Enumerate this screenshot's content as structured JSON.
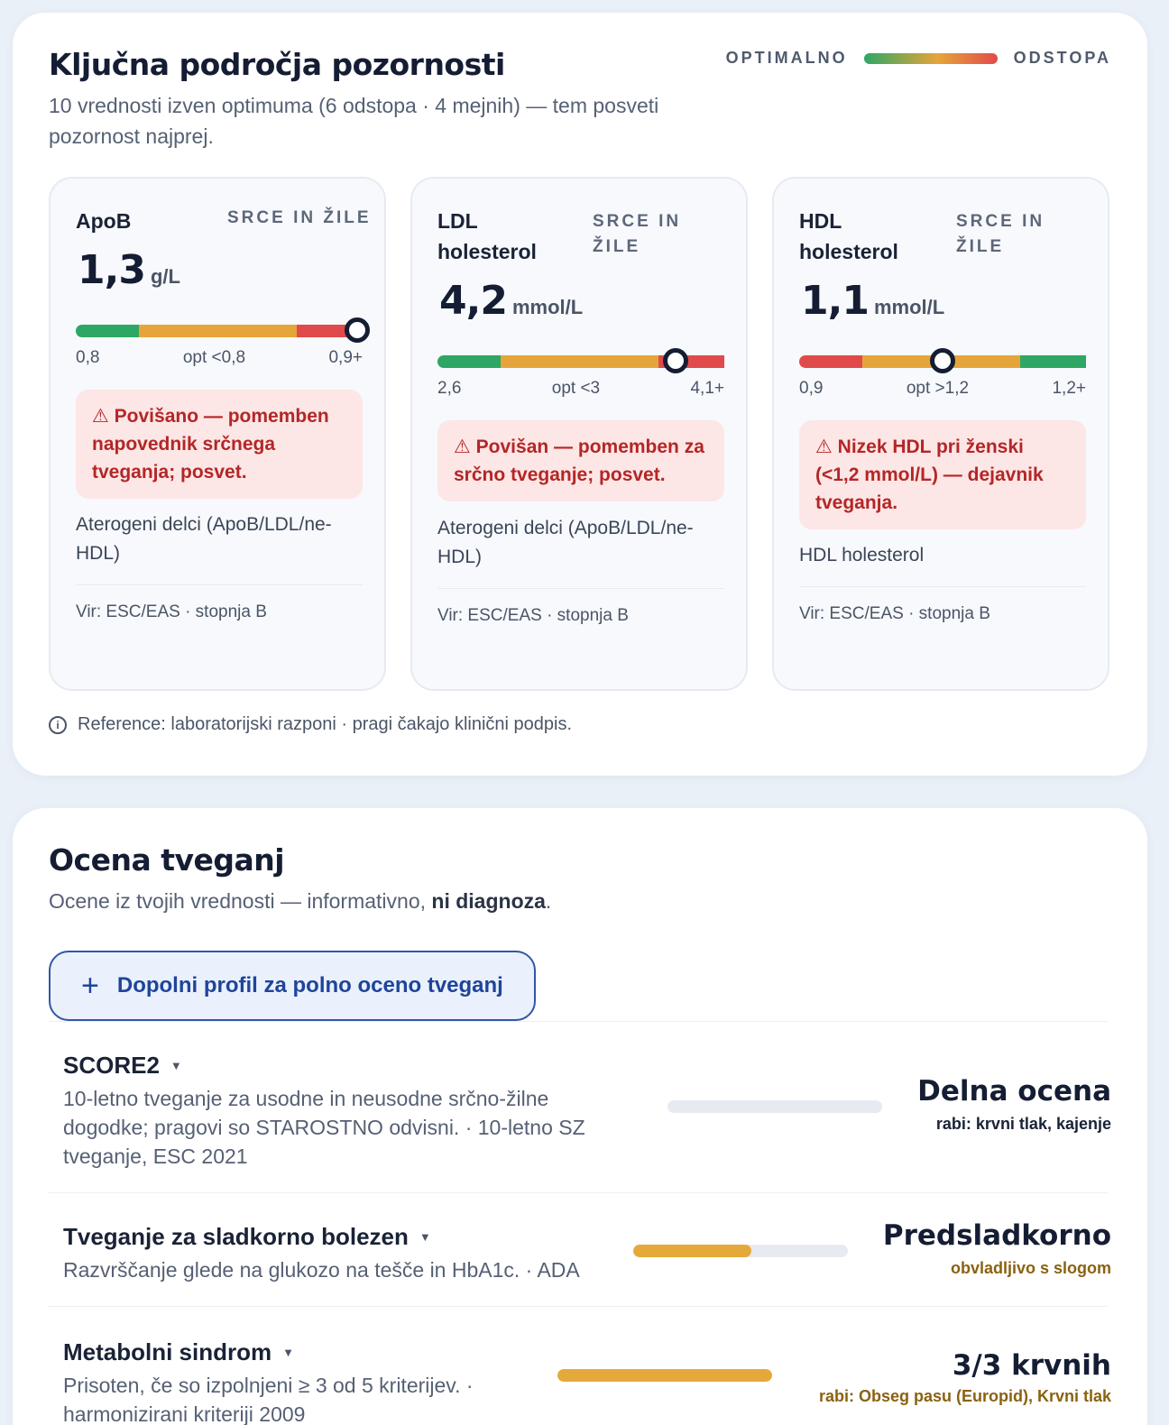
{
  "attention": {
    "title": "Ključna področja pozornosti",
    "subtitle_line1": "10 vrednosti izven optimuma (6 odstopa · 4 mejnih) — tem posveti",
    "subtitle_line2": "pozornost najprej.",
    "legend": {
      "left": "OPTIMALNO",
      "right": "ODSTOPA"
    },
    "cards": [
      {
        "name_line1": "ApoB",
        "name_line2": "",
        "category_line1": "SRCE IN ŽILE",
        "category_line2": "",
        "value": "1,3",
        "unit": "g/L",
        "gauge": {
          "segments": [
            {
              "color": "#2ea664",
              "frac": 0.22
            },
            {
              "color": "#e6a53a",
              "frac": 0.55
            },
            {
              "color": "#e14a4a",
              "frac": 0.23
            }
          ],
          "marker": 0.98
        },
        "ticks": {
          "low": "0,8",
          "opt": "opt <0,8",
          "high": "0,9+"
        },
        "alert": "⚠ Povišano — pomemben napovednik srčnega tveganja; posvet.",
        "description": "Aterogeni delci (ApoB/LDL/ne-HDL)",
        "source": "Vir: ESC/EAS · stopnja B"
      },
      {
        "name_line1": "LDL",
        "name_line2": "holesterol",
        "category_line1": "SRCE IN",
        "category_line2": "ŽILE",
        "value": "4,2",
        "unit": "mmol/L",
        "gauge": {
          "segments": [
            {
              "color": "#2ea664",
              "frac": 0.22
            },
            {
              "color": "#e6a53a",
              "frac": 0.55
            },
            {
              "color": "#e14a4a",
              "frac": 0.23
            }
          ],
          "marker": 0.83
        },
        "ticks": {
          "low": "2,6",
          "opt": "opt <3",
          "high": "4,1+"
        },
        "alert": "⚠ Povišan — pomemben za srčno tveganje; posvet.",
        "description": "Aterogeni delci (ApoB/LDL/ne-HDL)",
        "source": "Vir: ESC/EAS · stopnja B"
      },
      {
        "name_line1": "HDL",
        "name_line2": "holesterol",
        "category_line1": "SRCE IN",
        "category_line2": "ŽILE",
        "value": "1,1",
        "unit": "mmol/L",
        "gauge": {
          "segments": [
            {
              "color": "#e14a4a",
              "frac": 0.22
            },
            {
              "color": "#e6a53a",
              "frac": 0.55
            },
            {
              "color": "#2ea664",
              "frac": 0.23
            }
          ],
          "marker": 0.5
        },
        "ticks": {
          "low": "0,9",
          "opt": "opt >1,2",
          "high": "1,2+"
        },
        "alert": "⚠ Nizek HDL pri ženski (<1,2 mmol/L) — dejavnik tveganja.",
        "description": "HDL holesterol",
        "source": "Vir: ESC/EAS · stopnja B"
      }
    ],
    "reference_note": "Reference: laboratorijski razponi · pragi čakajo klinični podpis."
  },
  "risk": {
    "title": "Ocena tveganj",
    "subtitle_plain": "Ocene iz tvojih vrednosti — informativno, ",
    "subtitle_bold": "ni diagnoza",
    "subtitle_end": ".",
    "complete_button": "Dopolni profil za polno oceno tveganj",
    "rows": [
      {
        "title": "SCORE2",
        "description": "10-letno tveganje za usodne in neusodne srčno-žilne dogodke; pragovi so STAROSTNO odvisni. · 10-letno SZ tveganje, ESC 2021",
        "progress": 0,
        "status": "Delna ocena",
        "status_note": "rabi: krvni tlak, kajenje",
        "note_color": "#1a2236"
      },
      {
        "title": "Tveganje za sladkorno bolezen",
        "description": "Razvrščanje glede na glukozo na tešče in HbA1c. · ADA",
        "progress": 0.55,
        "status": "Predsladkorno",
        "status_note": "obvladljivo s slogom",
        "note_color": "#8a6210"
      },
      {
        "title": "Metabolni sindrom",
        "description": "Prisoten, če so izpolnjeni ≥ 3 od 5 kriterijev. · harmonizirani kriteriji 2009",
        "progress": 1.0,
        "status": "3/3 krvnih",
        "status_note": "rabi: Obseg pasu (Europid), Krvni tlak",
        "note_color": "#8a6210"
      }
    ]
  }
}
